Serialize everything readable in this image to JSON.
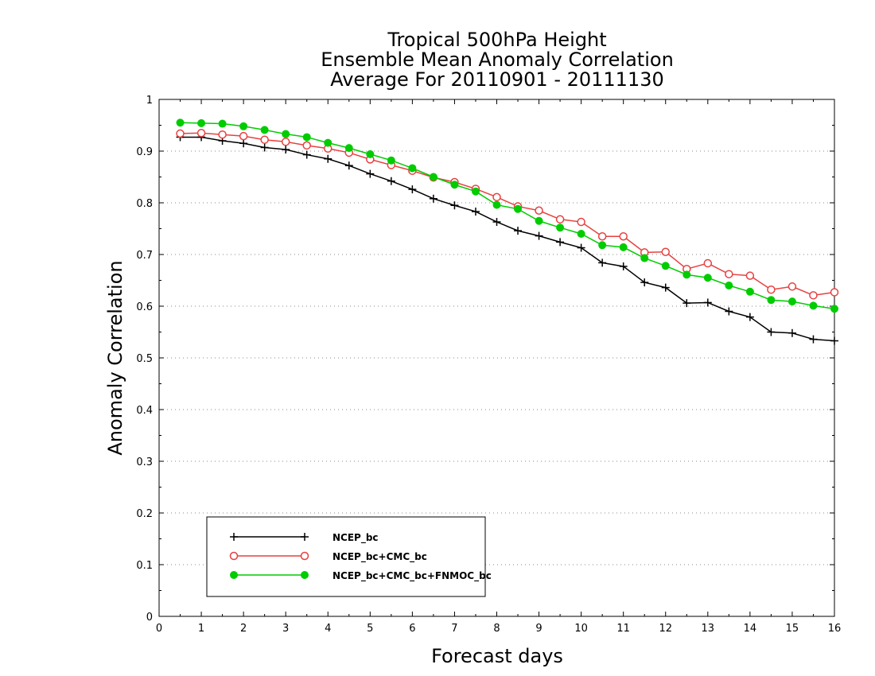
{
  "chart_data": {
    "type": "line",
    "title": [
      "Tropical 500hPa Height",
      "Ensemble Mean Anomaly Correlation",
      "Average For 20110901 - 20111130"
    ],
    "xlabel": "Forecast days",
    "ylabel": "Anomaly Correlation",
    "xlim": [
      0,
      16
    ],
    "ylim": [
      0,
      1
    ],
    "x_ticks": [
      "0",
      "1",
      "2",
      "3",
      "4",
      "5",
      "6",
      "7",
      "8",
      "9",
      "10",
      "11",
      "12",
      "13",
      "14",
      "15",
      "16"
    ],
    "y_ticks": [
      "0",
      "0.1",
      "0.2",
      "0.3",
      "0.4",
      "0.5",
      "0.6",
      "0.7",
      "0.8",
      "0.9",
      "1"
    ],
    "grid": true,
    "legend_placement": "bottom-left",
    "x": [
      0.5,
      1,
      1.5,
      2,
      2.5,
      3,
      3.5,
      4,
      4.5,
      5,
      5.5,
      6,
      6.5,
      7,
      7.5,
      8,
      8.5,
      9,
      9.5,
      10,
      10.5,
      11,
      11.5,
      12,
      12.5,
      13,
      13.5,
      14,
      14.5,
      15,
      15.5,
      16
    ],
    "series": [
      {
        "name": "NCEP_bc",
        "color": "#000000",
        "marker": "plus",
        "values": [
          0.927,
          0.927,
          0.92,
          0.915,
          0.907,
          0.903,
          0.893,
          0.885,
          0.872,
          0.856,
          0.842,
          0.826,
          0.808,
          0.795,
          0.783,
          0.763,
          0.746,
          0.736,
          0.724,
          0.713,
          0.684,
          0.677,
          0.646,
          0.636,
          0.606,
          0.607,
          0.59,
          0.579,
          0.55,
          0.548,
          0.536,
          0.533
        ]
      },
      {
        "name": "NCEP_bc+CMC_bc",
        "color": "#e84040",
        "marker": "open-circle",
        "values": [
          0.934,
          0.935,
          0.932,
          0.929,
          0.922,
          0.918,
          0.911,
          0.905,
          0.897,
          0.884,
          0.873,
          0.862,
          0.849,
          0.84,
          0.827,
          0.811,
          0.793,
          0.785,
          0.768,
          0.763,
          0.735,
          0.735,
          0.704,
          0.705,
          0.672,
          0.683,
          0.662,
          0.659,
          0.632,
          0.638,
          0.621,
          0.627
        ]
      },
      {
        "name": "NCEP_bc+CMC_bc+FNMOC_bc",
        "color": "#00cc00",
        "marker": "filled-circle",
        "values": [
          0.955,
          0.954,
          0.953,
          0.948,
          0.941,
          0.933,
          0.927,
          0.916,
          0.906,
          0.894,
          0.882,
          0.867,
          0.85,
          0.835,
          0.822,
          0.796,
          0.788,
          0.765,
          0.752,
          0.74,
          0.718,
          0.714,
          0.693,
          0.678,
          0.661,
          0.655,
          0.64,
          0.628,
          0.612,
          0.609,
          0.601,
          0.595
        ]
      }
    ]
  }
}
